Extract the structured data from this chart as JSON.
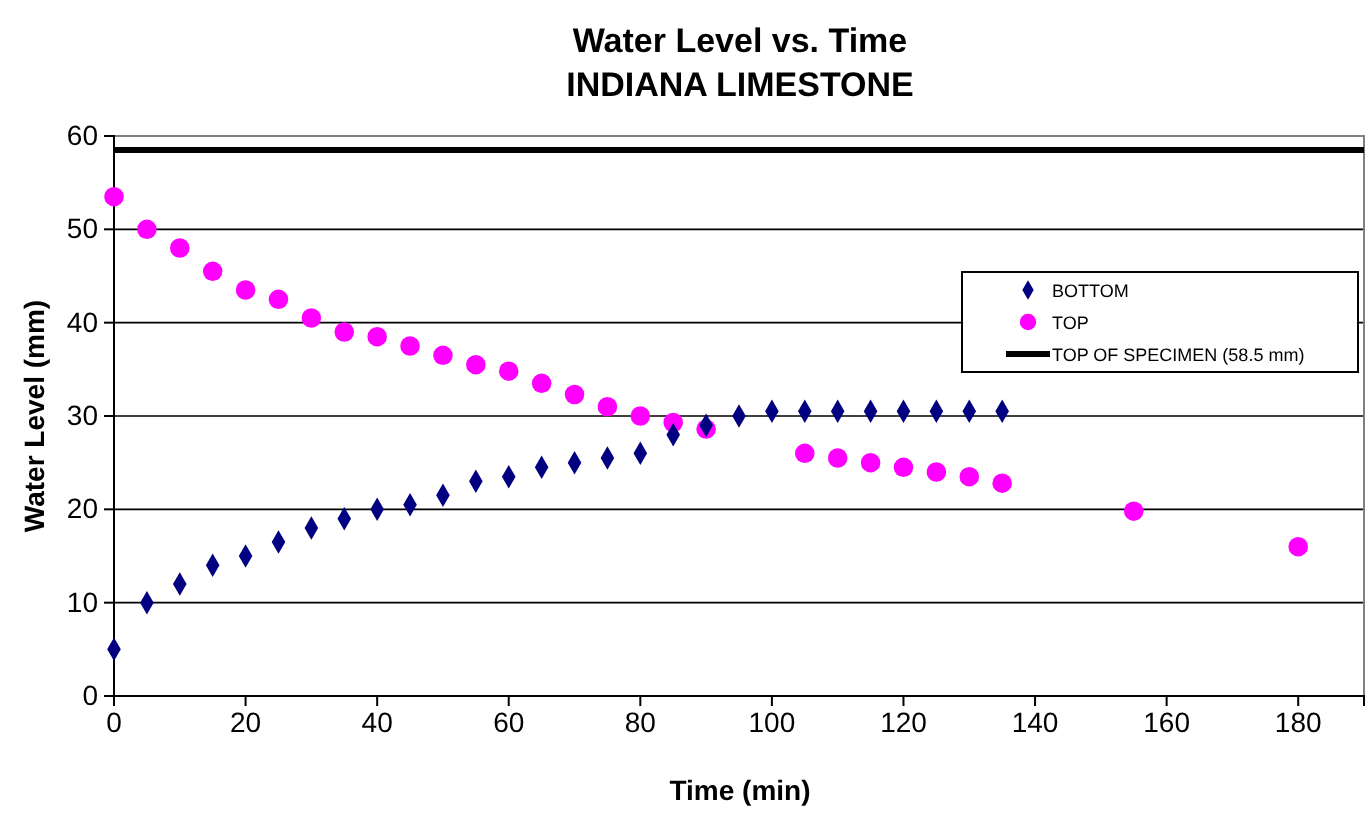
{
  "chart_data": {
    "type": "scatter",
    "title": "Water Level vs. Time",
    "subtitle": "INDIANA LIMESTONE",
    "xlabel": "Time (min)",
    "ylabel": "Water Level (mm)",
    "xlim": [
      0,
      190
    ],
    "xticks": [
      0,
      20,
      40,
      60,
      80,
      100,
      120,
      140,
      160,
      180
    ],
    "ylim": [
      0,
      60
    ],
    "yticks": [
      0,
      10,
      20,
      30,
      40,
      50,
      60
    ],
    "grid": "y",
    "legend": "right",
    "series": [
      {
        "name": "BOTTOM",
        "color": "#000080",
        "marker": "diamond",
        "x": [
          0,
          5,
          10,
          15,
          20,
          25,
          30,
          35,
          40,
          45,
          50,
          55,
          60,
          65,
          70,
          75,
          80,
          85,
          90,
          95,
          100,
          105,
          110,
          115,
          120,
          125,
          130,
          135
        ],
        "values": [
          5,
          10,
          12,
          14,
          15,
          16.5,
          18,
          19,
          20,
          20.5,
          21.5,
          23,
          23.5,
          24.5,
          25,
          25.5,
          26,
          28,
          29,
          30,
          30.5,
          30.5,
          30.5,
          30.5,
          30.5,
          30.5,
          30.5,
          30.5
        ]
      },
      {
        "name": "TOP",
        "color": "#ff00ff",
        "marker": "circle",
        "x": [
          0,
          5,
          10,
          15,
          20,
          25,
          30,
          35,
          40,
          45,
          50,
          55,
          60,
          65,
          70,
          75,
          80,
          85,
          90,
          105,
          110,
          115,
          120,
          125,
          130,
          135,
          155,
          180
        ],
        "values": [
          53.5,
          50,
          48,
          45.5,
          43.5,
          42.5,
          40.5,
          39,
          38.5,
          37.5,
          36.5,
          35.5,
          34.8,
          33.5,
          32.3,
          31,
          30,
          29.3,
          28.6,
          26,
          25.5,
          25,
          24.5,
          24,
          23.5,
          22.8,
          19.8,
          16
        ]
      }
    ],
    "ref_lines": [
      {
        "axis": "y",
        "value": 58.5,
        "label": "TOP OF SPECIMEN (58.5 mm)",
        "color": "#000000",
        "line_style": "solid"
      }
    ]
  }
}
